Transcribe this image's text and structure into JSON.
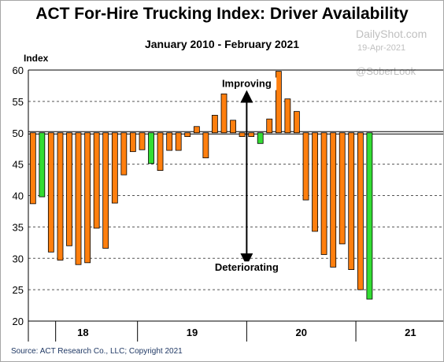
{
  "chart_data": {
    "type": "bar",
    "title": "ACT For-Hire Trucking Index: Driver Availability",
    "subtitle": "January 2010 - February 2021",
    "ylabel": "Index",
    "ylim": [
      20,
      60
    ],
    "yticks": [
      20,
      25,
      30,
      35,
      40,
      45,
      50,
      55,
      60
    ],
    "xlim": [
      17.5,
      21.3
    ],
    "xticks": [
      {
        "label": "18",
        "x": 18.0
      },
      {
        "label": "19",
        "x": 19.0
      },
      {
        "label": "20",
        "x": 20.0
      },
      {
        "label": "21",
        "x": 21.0
      }
    ],
    "baseline": 50,
    "grid": "dashed horizontal",
    "colors": {
      "default": "#ff7f0e",
      "highlight": "#33dd33",
      "edge": "#000000"
    },
    "values": [
      {
        "x": 17.542,
        "v": 38.7,
        "hl": false
      },
      {
        "x": 17.625,
        "v": 39.8,
        "hl": true
      },
      {
        "x": 17.708,
        "v": 31.0,
        "hl": false
      },
      {
        "x": 17.792,
        "v": 29.7,
        "hl": false
      },
      {
        "x": 17.875,
        "v": 32.0,
        "hl": false
      },
      {
        "x": 17.958,
        "v": 29.0,
        "hl": false
      },
      {
        "x": 18.042,
        "v": 29.3,
        "hl": false
      },
      {
        "x": 18.125,
        "v": 34.8,
        "hl": false
      },
      {
        "x": 18.208,
        "v": 31.6,
        "hl": false
      },
      {
        "x": 18.292,
        "v": 38.8,
        "hl": false
      },
      {
        "x": 18.375,
        "v": 43.3,
        "hl": false
      },
      {
        "x": 18.458,
        "v": 47.0,
        "hl": false
      },
      {
        "x": 18.542,
        "v": 47.3,
        "hl": false
      },
      {
        "x": 18.625,
        "v": 45.1,
        "hl": true
      },
      {
        "x": 18.708,
        "v": 44.0,
        "hl": false
      },
      {
        "x": 18.792,
        "v": 47.2,
        "hl": false
      },
      {
        "x": 18.875,
        "v": 47.2,
        "hl": false
      },
      {
        "x": 18.958,
        "v": 49.4,
        "hl": false
      },
      {
        "x": 19.042,
        "v": 51.0,
        "hl": false
      },
      {
        "x": 19.125,
        "v": 46.0,
        "hl": false
      },
      {
        "x": 19.208,
        "v": 52.8,
        "hl": false
      },
      {
        "x": 19.292,
        "v": 56.2,
        "hl": false
      },
      {
        "x": 19.375,
        "v": 52.0,
        "hl": false
      },
      {
        "x": 19.458,
        "v": 49.4,
        "hl": false
      },
      {
        "x": 19.542,
        "v": 49.4,
        "hl": false
      },
      {
        "x": 19.625,
        "v": 48.3,
        "hl": true
      },
      {
        "x": 19.708,
        "v": 52.2,
        "hl": false
      },
      {
        "x": 19.792,
        "v": 59.8,
        "hl": false
      },
      {
        "x": 19.875,
        "v": 55.4,
        "hl": false
      },
      {
        "x": 19.958,
        "v": 53.4,
        "hl": false
      },
      {
        "x": 20.042,
        "v": 39.3,
        "hl": false
      },
      {
        "x": 20.125,
        "v": 34.3,
        "hl": false
      },
      {
        "x": 20.208,
        "v": 30.6,
        "hl": false
      },
      {
        "x": 20.292,
        "v": 28.6,
        "hl": false
      },
      {
        "x": 20.375,
        "v": 32.3,
        "hl": false
      },
      {
        "x": 20.458,
        "v": 28.2,
        "hl": false
      },
      {
        "x": 20.542,
        "v": 25.0,
        "hl": false
      },
      {
        "x": 20.625,
        "v": 23.5,
        "hl": true
      }
    ],
    "annotations": [
      {
        "text": "Improving",
        "x": 19.5,
        "y": 57.3
      },
      {
        "text": "Deteriorating",
        "x": 19.5,
        "y": 28.0
      }
    ],
    "arrow": {
      "x": 19.5,
      "top": 55.8,
      "bottom": 29.8
    }
  },
  "source": "Source: ACT Research Co., LLC; Copyright 2021",
  "watermark": {
    "site": "DailyShot.com",
    "date": "19-Apr-2021",
    "handle": "@SoberLook"
  }
}
